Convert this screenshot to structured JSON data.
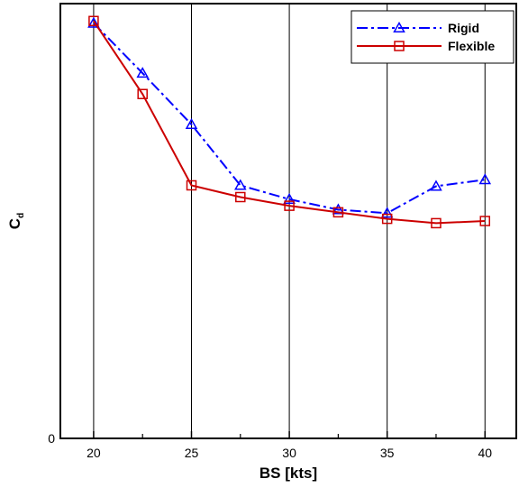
{
  "chart_data": {
    "type": "line",
    "xlabel": "BS [kts]",
    "ylabel_main": "C",
    "ylabel_sub": "d",
    "xlim": [
      18.3,
      41.6
    ],
    "ylim": [
      0,
      1
    ],
    "x_ticks": [
      20,
      25,
      30,
      35,
      40
    ],
    "x_tick_labels": [
      "20",
      "25",
      "30",
      "35",
      "40"
    ],
    "x_minor_ticks": [
      22.5,
      27.5,
      32.5,
      37.5
    ],
    "y_tick_labels": [
      "0"
    ],
    "grid": "vertical lines at major x ticks",
    "legend_position": "top-right",
    "series": [
      {
        "name": "Rigid",
        "color": "#0000ff",
        "line_style": "dash-dot",
        "marker": "triangle",
        "x": [
          20,
          22.5,
          25,
          27.5,
          30,
          32.5,
          35,
          37.5,
          40
        ],
        "y": [
          0.955,
          0.84,
          0.722,
          0.582,
          0.55,
          0.526,
          0.518,
          0.58,
          0.595
        ]
      },
      {
        "name": "Flexible",
        "color": "#cc0000",
        "line_style": "solid",
        "marker": "square",
        "x": [
          20,
          22.5,
          25,
          27.5,
          30,
          32.5,
          35,
          37.5,
          40
        ],
        "y": [
          0.96,
          0.792,
          0.582,
          0.555,
          0.535,
          0.52,
          0.505,
          0.495,
          0.5
        ]
      }
    ]
  }
}
